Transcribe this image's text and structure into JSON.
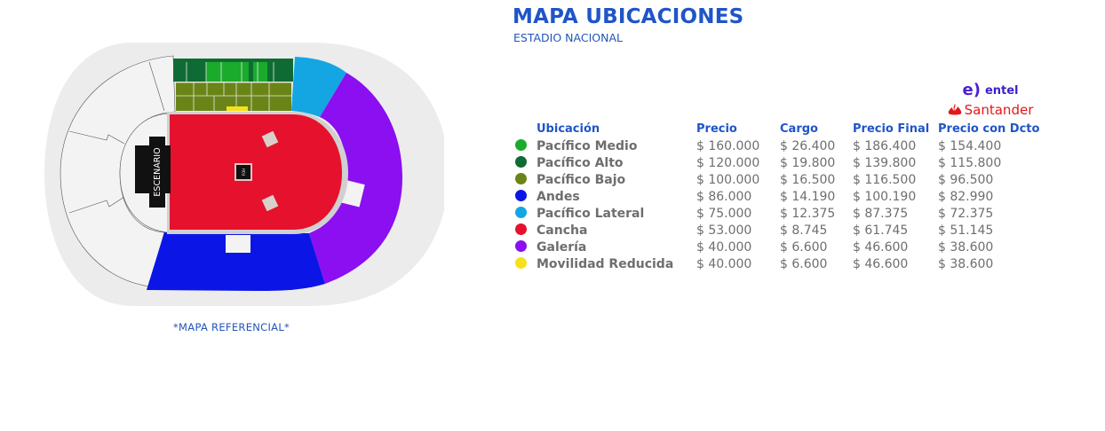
{
  "header": {
    "title": "MAPA UBICACIONES",
    "subtitle": "ESTADIO NACIONAL"
  },
  "sponsors": {
    "entel_logo": "e)",
    "entel": "entel",
    "santander": "Santander"
  },
  "map": {
    "stage_label": "ESCENARIO",
    "foh_label": "FOH",
    "note": "*MAPA REFERENCIAL*"
  },
  "table": {
    "headers": {
      "location": "Ubicación",
      "price": "Precio",
      "fee": "Cargo",
      "final_price": "Precio Final",
      "discount_price": "Precio con Dcto"
    },
    "rows": [
      {
        "color": "#1aab2c",
        "location": "Pacífico Medio",
        "price": "$ 160.000",
        "fee": "$ 26.400",
        "final": "$ 186.400",
        "discount": "$ 154.400"
      },
      {
        "color": "#0f6b34",
        "location": "Pacífico Alto",
        "price": "$ 120.000",
        "fee": "$ 19.800",
        "final": "$ 139.800",
        "discount": "$ 115.800"
      },
      {
        "color": "#6b8418",
        "location": "Pacífico Bajo",
        "price": "$ 100.000",
        "fee": "$ 16.500",
        "final": "$ 116.500",
        "discount": "$ 96.500"
      },
      {
        "color": "#0b16e6",
        "location": "Andes",
        "price": "$ 86.000",
        "fee": "$ 14.190",
        "final": "$ 100.190",
        "discount": "$ 82.990"
      },
      {
        "color": "#14a6e3",
        "location": "Pacífico Lateral",
        "price": "$ 75.000",
        "fee": "$ 12.375",
        "final": "$ 87.375",
        "discount": "$ 72.375"
      },
      {
        "color": "#e5112d",
        "location": "Cancha",
        "price": "$ 53.000",
        "fee": "$ 8.745",
        "final": "$ 61.745",
        "discount": "$ 51.145"
      },
      {
        "color": "#8b0ff0",
        "location": "Galería",
        "price": "$ 40.000",
        "fee": "$ 6.600",
        "final": "$ 46.600",
        "discount": "$ 38.600"
      },
      {
        "color": "#f6e11a",
        "location": "Movilidad Reducida",
        "price": "$ 40.000",
        "fee": "$ 6.600",
        "final": "$ 46.600",
        "discount": "$ 38.600"
      }
    ]
  }
}
